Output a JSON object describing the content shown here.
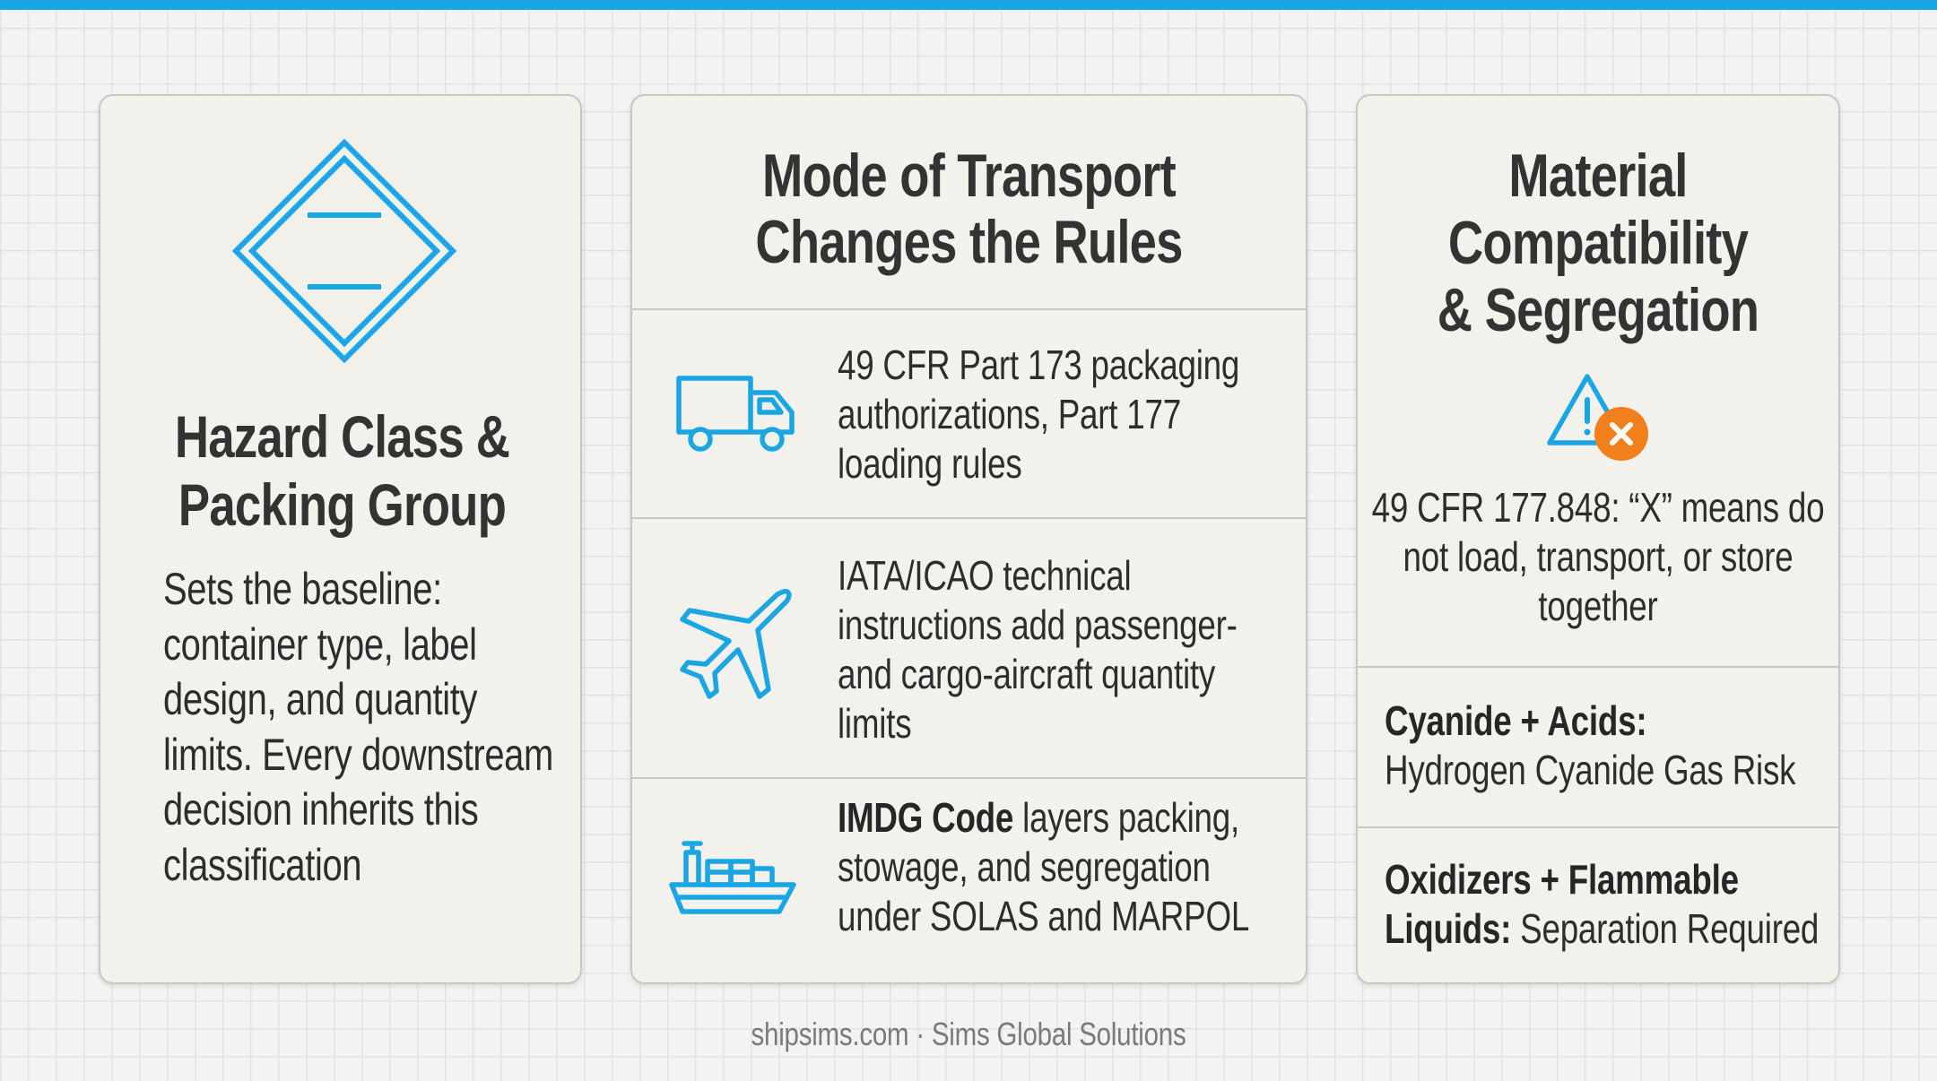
{
  "colors": {
    "accent_blue": "#1aa6e3",
    "warning_orange": "#f07f1c",
    "card_background": "#f3f1ec",
    "page_background": "#f3f3f3"
  },
  "cards": {
    "hazard": {
      "icon": "hazard-diamond-icon",
      "title_line1": "Hazard Class &",
      "title_line2": "Packing Group",
      "body": "Sets the baseline: container type, label design, and quantity limits. Every downstream decision inherits this classification"
    },
    "transport": {
      "title_line1": "Mode of Transport",
      "title_line2": "Changes the Rules",
      "rows": [
        {
          "icon": "truck-icon",
          "text": "49 CFR Part 173 packaging authorizations, Part 177 loading rules"
        },
        {
          "icon": "airplane-icon",
          "text": "IATA/ICAO technical instructions add passenger- and cargo-aircraft quantity limits"
        },
        {
          "icon": "ship-icon",
          "bold": "IMDG Code",
          "text": " layers packing, stowage, and segregation under SOLAS and MARPOL"
        }
      ]
    },
    "compatibility": {
      "title_line1": "Material",
      "title_line2": "Compatibility",
      "title_line3": "& Segregation",
      "icon": "warning-x-icon",
      "body": "49 CFR 177.848: “X” means do not load, transport, or store together",
      "rows": [
        {
          "bold": "Cyanide + Acids:",
          "text": "Hydrogen Cyanide Gas Risk"
        },
        {
          "bold": "Oxidizers + Flammable Liquids:",
          "text": " Separation Required"
        }
      ]
    }
  },
  "footer": "shipsims.com · Sims Global Solutions"
}
